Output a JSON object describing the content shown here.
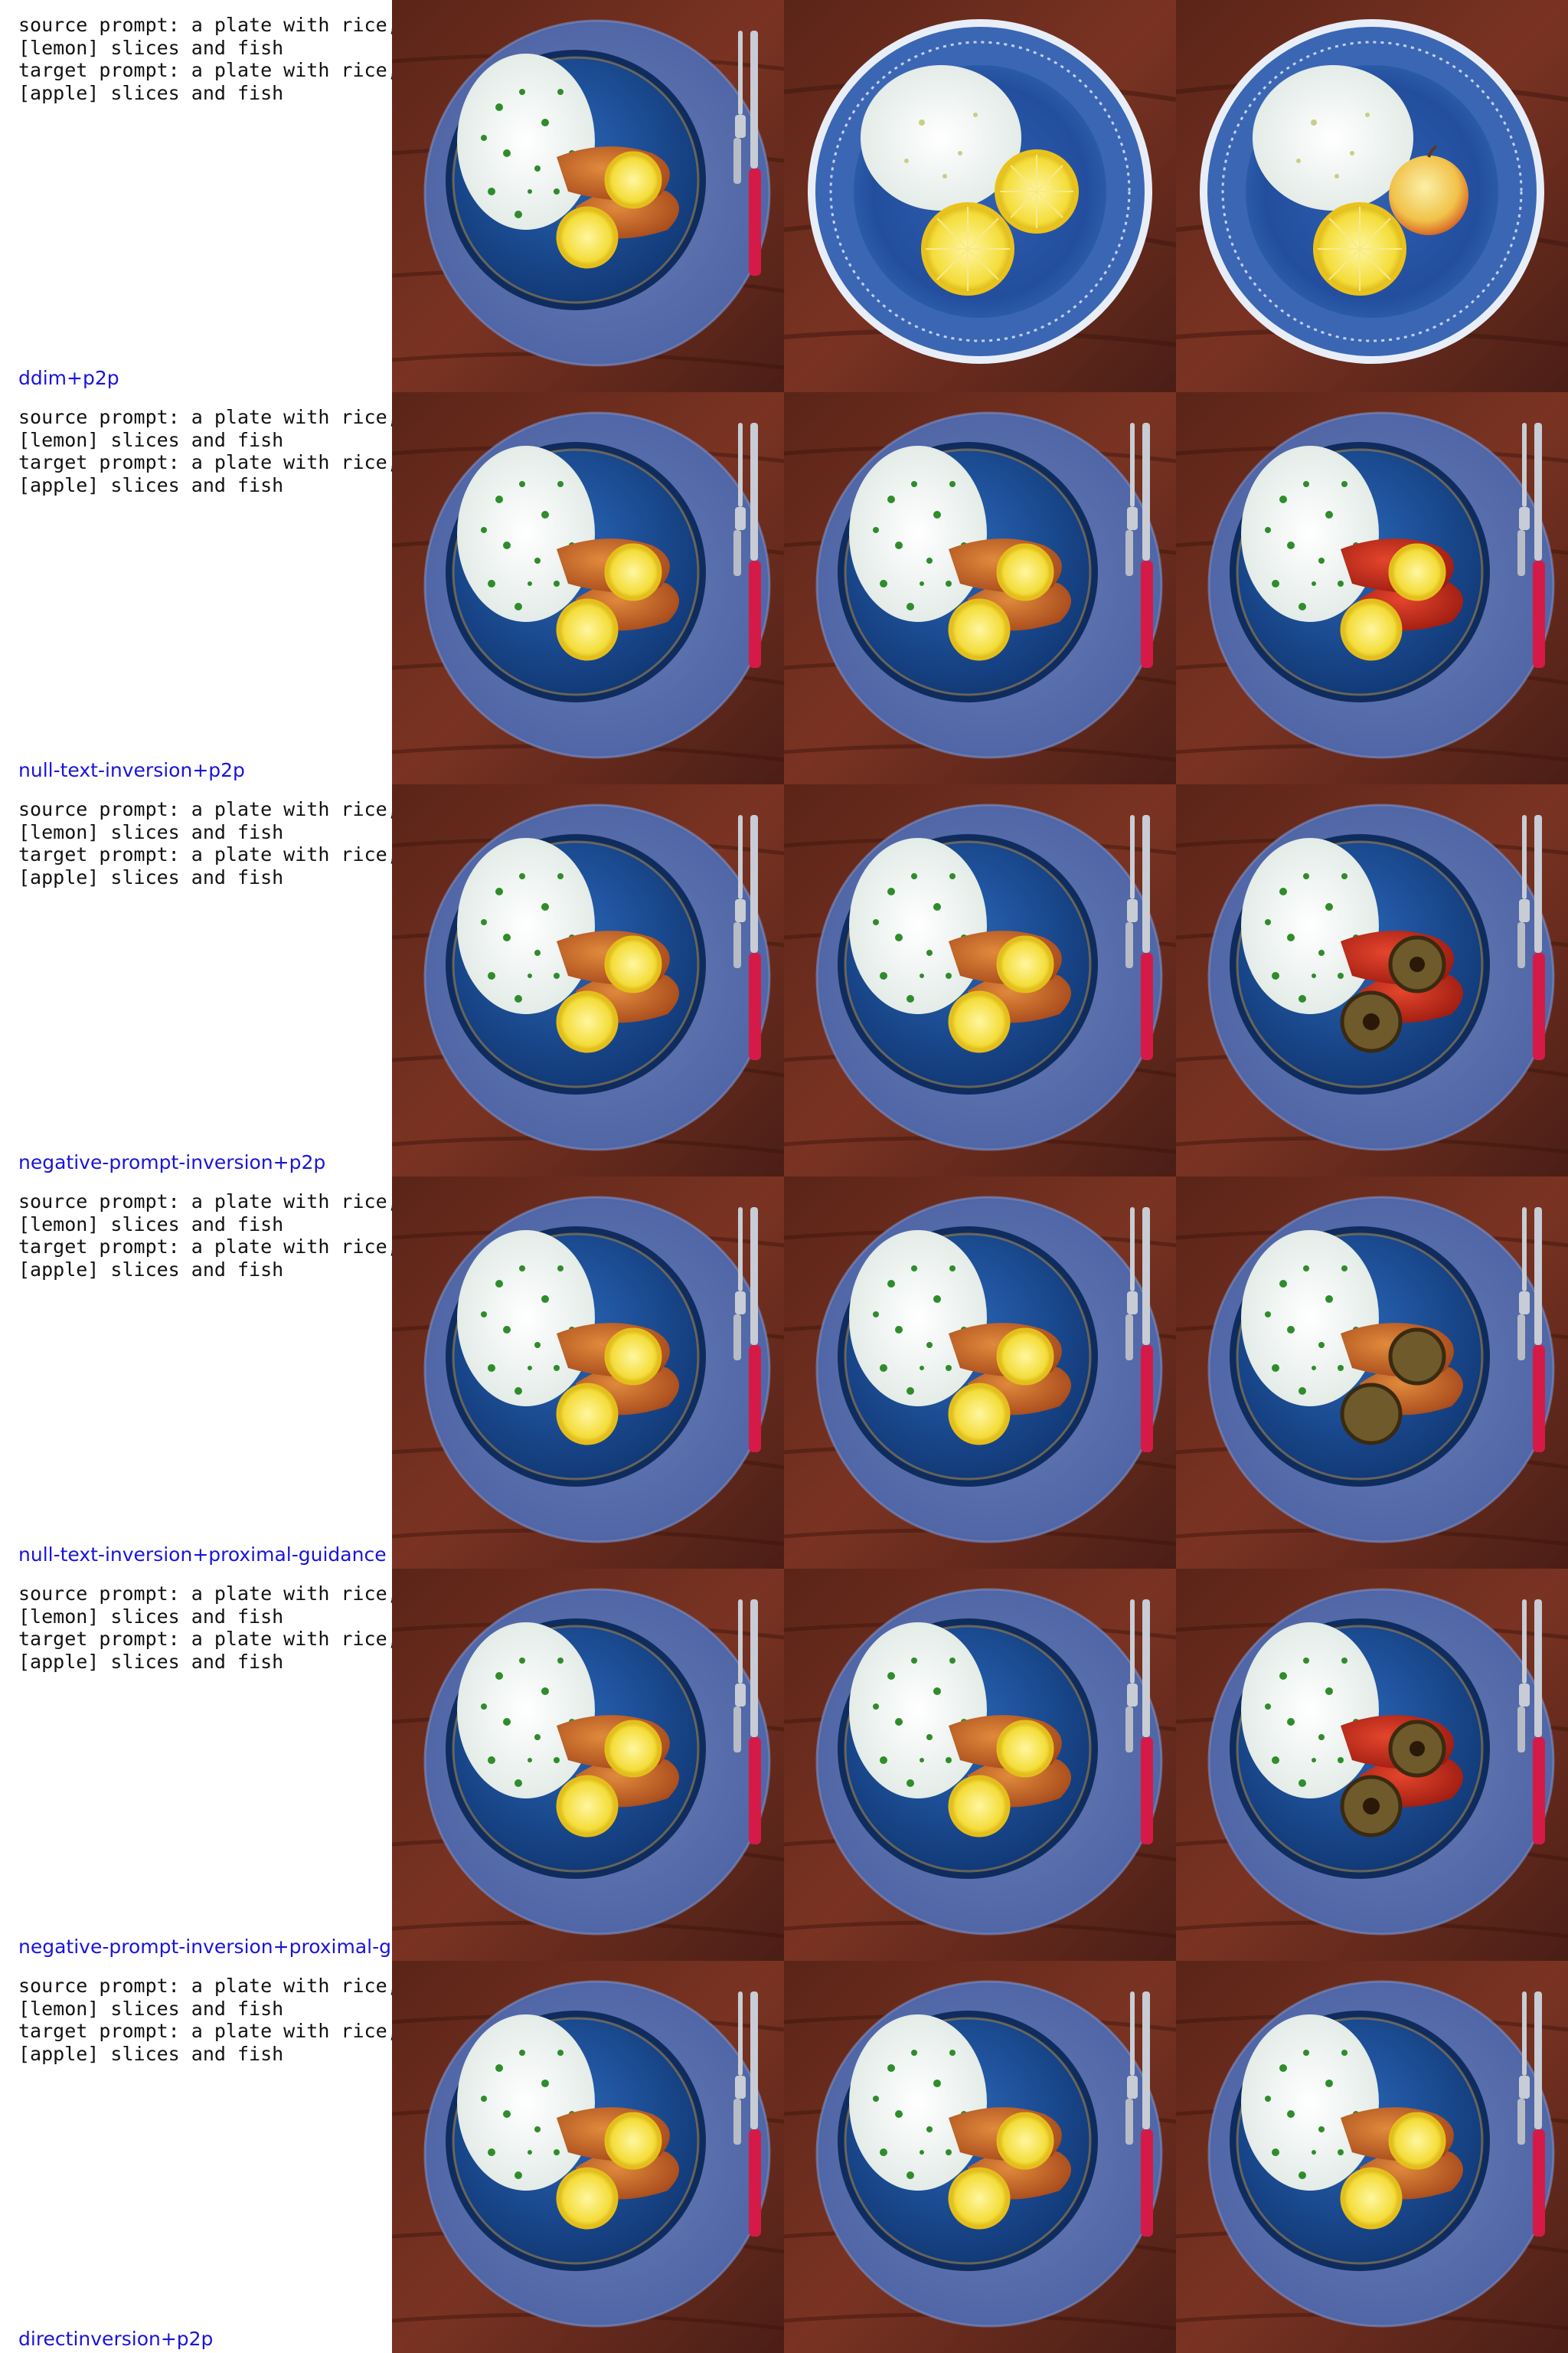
{
  "colors": {
    "method_label": "#1a14d8",
    "prompt_text": "#111111"
  },
  "rows": [
    {
      "method": "ddim+p2p",
      "source_prompt": "source prompt: a plate with rice,\n[lemon] slices and fish",
      "target_prompt": "target prompt: a plate with rice,\n[apple] slices and fish",
      "cells": [
        "source-image",
        "reconstruction-image",
        "edited-image"
      ]
    },
    {
      "method": "null-text-inversion+p2p",
      "source_prompt": "source prompt: a plate with rice,\n[lemon] slices and fish",
      "target_prompt": "target prompt: a plate with rice,\n[apple] slices and fish",
      "cells": [
        "source-image",
        "reconstruction-image",
        "edited-image"
      ]
    },
    {
      "method": "negative-prompt-inversion+p2p",
      "source_prompt": "source prompt: a plate with rice,\n[lemon] slices and fish",
      "target_prompt": "target prompt: a plate with rice,\n[apple] slices and fish",
      "cells": [
        "source-image",
        "reconstruction-image",
        "edited-image"
      ]
    },
    {
      "method": "null-text-inversion+proximal-guidance",
      "source_prompt": "source prompt: a plate with rice,\n[lemon] slices and fish",
      "target_prompt": "target prompt: a plate with rice,\n[apple] slices and fish",
      "cells": [
        "source-image",
        "reconstruction-image",
        "edited-image"
      ]
    },
    {
      "method": "negative-prompt-inversion+proximal-guidance",
      "source_prompt": "source prompt: a plate with rice,\n[lemon] slices and fish",
      "target_prompt": "target prompt: a plate with rice,\n[apple] slices and fish",
      "cells": [
        "source-image",
        "reconstruction-image",
        "edited-image"
      ]
    },
    {
      "method": "directinversion+p2p",
      "source_prompt": "source prompt: a plate with rice,\n[lemon] slices and fish",
      "target_prompt": "target prompt: a plate with rice,\n[apple] slices and fish",
      "cells": [
        "source-image",
        "reconstruction-image",
        "edited-image"
      ]
    }
  ]
}
